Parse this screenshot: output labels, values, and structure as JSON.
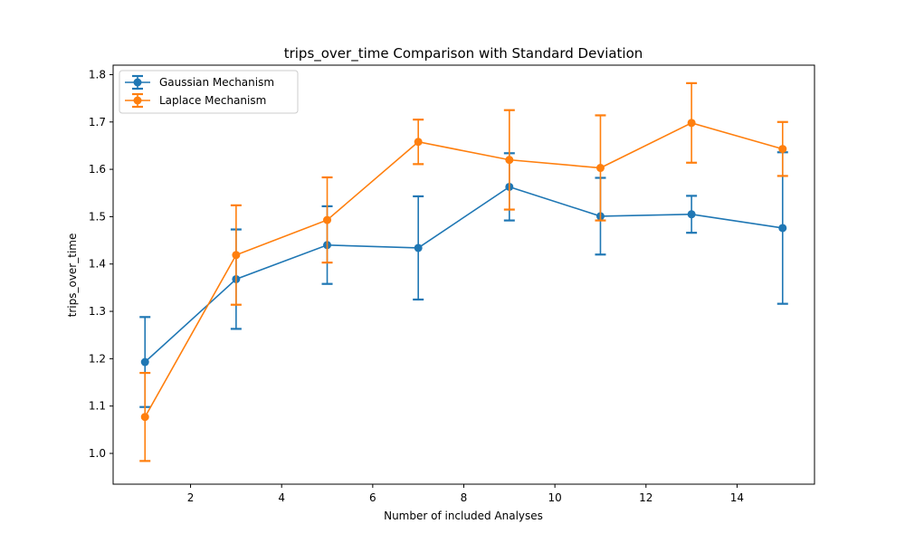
{
  "chart_data": {
    "type": "line",
    "title": "trips_over_time Comparison with Standard Deviation",
    "xlabel": "Number of included Analyses",
    "ylabel": "trips_over_time",
    "xlim": [
      0.3,
      15.7
    ],
    "ylim": [
      0.935,
      1.82
    ],
    "xticks": [
      2,
      4,
      6,
      8,
      10,
      12,
      14
    ],
    "yticks": [
      1.0,
      1.1,
      1.2,
      1.3,
      1.4,
      1.5,
      1.6,
      1.7,
      1.8
    ],
    "grid": false,
    "legend_position": "top-left",
    "x": [
      1,
      3,
      5,
      7,
      9,
      11,
      13,
      15
    ],
    "series": [
      {
        "name": "Gaussian Mechanism",
        "color": "#1f77b4",
        "values": [
          1.193,
          1.368,
          1.44,
          1.434,
          1.563,
          1.501,
          1.505,
          1.476
        ],
        "errors": [
          0.095,
          0.105,
          0.082,
          0.109,
          0.071,
          0.081,
          0.039,
          0.16
        ]
      },
      {
        "name": "Laplace Mechanism",
        "color": "#ff7f0e",
        "values": [
          1.077,
          1.419,
          1.493,
          1.658,
          1.62,
          1.603,
          1.698,
          1.643
        ],
        "errors": [
          0.093,
          0.105,
          0.09,
          0.047,
          0.105,
          0.111,
          0.084,
          0.057
        ]
      }
    ]
  }
}
